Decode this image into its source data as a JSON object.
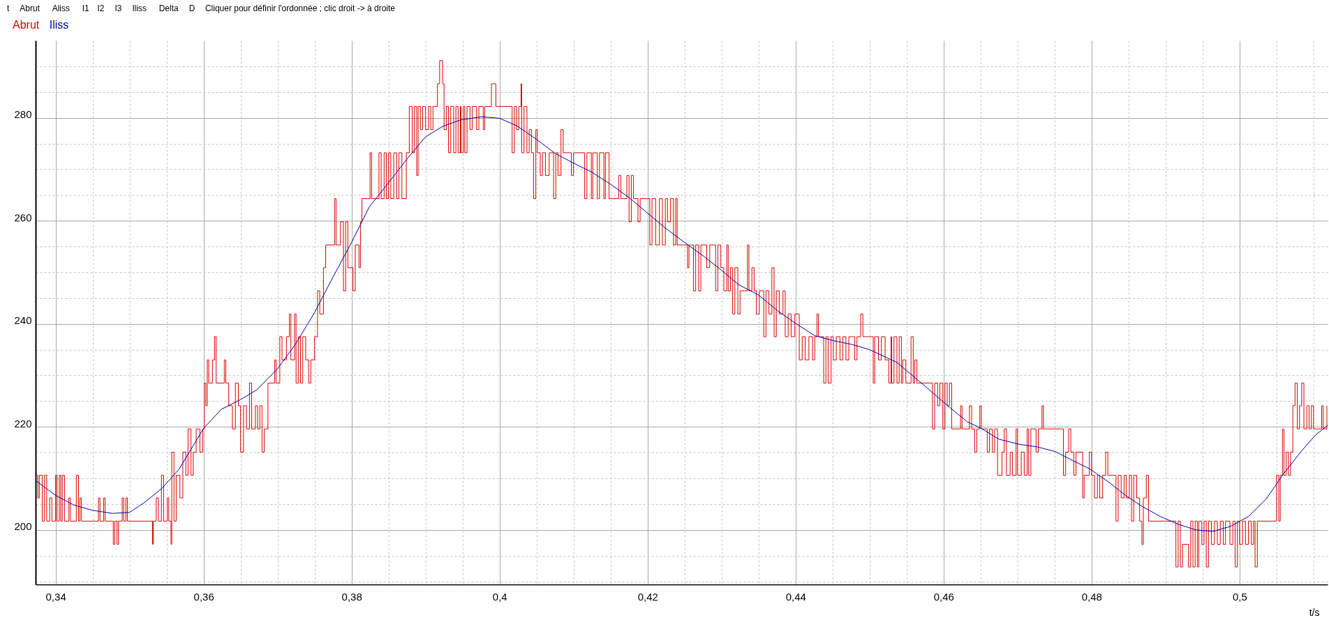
{
  "chart_data": {
    "type": "line",
    "xlabel": "t/s",
    "annotations": [
      "t",
      "Abrut",
      "Aliss",
      "I1",
      "I2",
      "I3",
      "Iliss",
      "Delta",
      "D",
      "Cliquer pour définir l'ordonnée ; clic droit -> à droite"
    ],
    "xlim": [
      0.3373,
      0.5119
    ],
    "ylim": [
      189.4,
      295
    ],
    "xticks": [
      {
        "value": 0.34,
        "label": "0,34"
      },
      {
        "value": 0.345,
        "label": null
      },
      {
        "value": 0.35,
        "label": null
      },
      {
        "value": 0.355,
        "label": null
      },
      {
        "value": 0.36,
        "label": "0,36"
      },
      {
        "value": 0.365,
        "label": null
      },
      {
        "value": 0.37,
        "label": null
      },
      {
        "value": 0.375,
        "label": null
      },
      {
        "value": 0.38,
        "label": "0,38"
      },
      {
        "value": 0.385,
        "label": null
      },
      {
        "value": 0.39,
        "label": null
      },
      {
        "value": 0.395,
        "label": null
      },
      {
        "value": 0.4,
        "label": "0,4"
      },
      {
        "value": 0.405,
        "label": null
      },
      {
        "value": 0.41,
        "label": null
      },
      {
        "value": 0.415,
        "label": null
      },
      {
        "value": 0.42,
        "label": "0,42"
      },
      {
        "value": 0.425,
        "label": null
      },
      {
        "value": 0.43,
        "label": null
      },
      {
        "value": 0.435,
        "label": null
      },
      {
        "value": 0.44,
        "label": "0,44"
      },
      {
        "value": 0.445,
        "label": null
      },
      {
        "value": 0.45,
        "label": null
      },
      {
        "value": 0.455,
        "label": null
      },
      {
        "value": 0.46,
        "label": "0,46"
      },
      {
        "value": 0.465,
        "label": null
      },
      {
        "value": 0.47,
        "label": null
      },
      {
        "value": 0.475,
        "label": null
      },
      {
        "value": 0.48,
        "label": "0,48"
      },
      {
        "value": 0.485,
        "label": null
      },
      {
        "value": 0.49,
        "label": null
      },
      {
        "value": 0.495,
        "label": null
      },
      {
        "value": 0.5,
        "label": "0,5"
      },
      {
        "value": 0.505,
        "label": null
      },
      {
        "value": 0.51,
        "label": null
      }
    ],
    "yticks": [
      {
        "value": 190,
        "label": null
      },
      {
        "value": 195,
        "label": null
      },
      200,
      {
        "value": 205,
        "label": null
      },
      {
        "value": 210,
        "label": null
      },
      {
        "value": 215,
        "label": null
      },
      220,
      {
        "value": 225,
        "label": null
      },
      {
        "value": 230,
        "label": null
      },
      {
        "value": 235,
        "label": null
      },
      240,
      {
        "value": 245,
        "label": null
      },
      {
        "value": 250,
        "label": null
      },
      {
        "value": 255,
        "label": null
      },
      260,
      {
        "value": 265,
        "label": null
      },
      {
        "value": 270,
        "label": null
      },
      {
        "value": 275,
        "label": null
      },
      280,
      {
        "value": 285,
        "label": null
      },
      {
        "value": 290,
        "label": null
      }
    ],
    "grid": true,
    "legend": "top left",
    "series": [
      {
        "name": "Abrut",
        "type": "step",
        "color": "#dd0000",
        "x": [
          0.3374,
          0.3376,
          0.3378,
          0.3382,
          0.3385,
          0.3388,
          0.3392,
          0.3395,
          0.34,
          0.3402,
          0.3405,
          0.3407,
          0.3409,
          0.3412,
          0.3418,
          0.342,
          0.3428,
          0.3431,
          0.3433,
          0.3435,
          0.3458,
          0.346,
          0.3465,
          0.3467,
          0.3478,
          0.348,
          0.3483,
          0.3485,
          0.349,
          0.3492,
          0.3495,
          0.3497,
          0.3531,
          0.3532,
          0.3536,
          0.3539,
          0.3543,
          0.3546,
          0.3551,
          0.3553,
          0.3556,
          0.3557,
          0.356,
          0.3563,
          0.3568,
          0.3572,
          0.3576,
          0.3579,
          0.3583,
          0.3586,
          0.359,
          0.3595,
          0.3599,
          0.3601,
          0.3603,
          0.3605,
          0.3607,
          0.3612,
          0.3615,
          0.3617,
          0.3628,
          0.363,
          0.3634,
          0.3639,
          0.3643,
          0.3647,
          0.365,
          0.3654,
          0.3658,
          0.3662,
          0.3665,
          0.367,
          0.3673,
          0.3676,
          0.3679,
          0.3682,
          0.3687,
          0.3696,
          0.3698,
          0.3703,
          0.3706,
          0.3712,
          0.3716,
          0.3718,
          0.3723,
          0.3725,
          0.3728,
          0.3731,
          0.3734,
          0.3738,
          0.3742,
          0.3745,
          0.375,
          0.3754,
          0.3757,
          0.3762,
          0.3765,
          0.3777,
          0.3779,
          0.3785,
          0.3789,
          0.3792,
          0.3795,
          0.3802,
          0.3805,
          0.381,
          0.3812,
          0.3814,
          0.3825,
          0.3827,
          0.3837,
          0.384,
          0.3844,
          0.3847,
          0.385,
          0.3853,
          0.3857,
          0.3861,
          0.3864,
          0.3868,
          0.3874,
          0.3878,
          0.3882,
          0.3885,
          0.3888,
          0.389,
          0.3893,
          0.3896,
          0.39,
          0.3904,
          0.3907,
          0.391,
          0.3916,
          0.3919,
          0.3923,
          0.3925,
          0.3928,
          0.3931,
          0.3934,
          0.3938,
          0.3941,
          0.3944,
          0.3947,
          0.3948,
          0.3951,
          0.3953,
          0.3956,
          0.396,
          0.3963,
          0.3969,
          0.3972,
          0.3978,
          0.398,
          0.3989,
          0.3995,
          0.4017,
          0.402,
          0.4023,
          0.4026,
          0.4029,
          0.403,
          0.4033,
          0.4037,
          0.404,
          0.4043,
          0.4046,
          0.4049,
          0.4051,
          0.4055,
          0.4058,
          0.4062,
          0.4067,
          0.4073,
          0.4076,
          0.4079,
          0.4083,
          0.4086,
          0.4097,
          0.41,
          0.4115,
          0.4118,
          0.4124,
          0.4126,
          0.4132,
          0.4135,
          0.4141,
          0.4143,
          0.4148,
          0.4161,
          0.4164,
          0.4172,
          0.4175,
          0.4178,
          0.4181,
          0.4187,
          0.419,
          0.4203,
          0.4206,
          0.4211,
          0.4216,
          0.422,
          0.4224,
          0.4227,
          0.4231,
          0.4235,
          0.4238,
          0.424,
          0.4254,
          0.4256,
          0.4262,
          0.4265,
          0.4269,
          0.4272,
          0.428,
          0.4284,
          0.4292,
          0.4295,
          0.4299,
          0.4303,
          0.4307,
          0.4309,
          0.4312,
          0.4315,
          0.4318,
          0.4322,
          0.4325,
          0.4335,
          0.4337,
          0.4341,
          0.4344,
          0.4347,
          0.4351,
          0.4357,
          0.436,
          0.4364,
          0.4368,
          0.4371,
          0.4374,
          0.4378,
          0.4383,
          0.4386,
          0.439,
          0.4394,
          0.4399,
          0.4405,
          0.4409,
          0.4413,
          0.4418,
          0.4423,
          0.4426,
          0.4429,
          0.4431,
          0.4438,
          0.4441,
          0.4444,
          0.4448,
          0.4451,
          0.4455,
          0.446,
          0.4464,
          0.4468,
          0.4472,
          0.448,
          0.4483,
          0.4488,
          0.4491,
          0.4505,
          0.4507,
          0.4512,
          0.4516,
          0.4521,
          0.4526,
          0.4529,
          0.453,
          0.4533,
          0.4537,
          0.454,
          0.4543,
          0.4545,
          0.4549,
          0.4556,
          0.4559,
          0.4561,
          0.4564,
          0.4585,
          0.4588,
          0.4592,
          0.4595,
          0.4599,
          0.4602,
          0.4605,
          0.4608,
          0.4611,
          0.4623,
          0.4625,
          0.4635,
          0.4638,
          0.4642,
          0.4645,
          0.4649,
          0.4651,
          0.4659,
          0.4662,
          0.4666,
          0.4669,
          0.4673,
          0.4679,
          0.4682,
          0.4685,
          0.469,
          0.4693,
          0.4698,
          0.47,
          0.4705,
          0.4709,
          0.4713,
          0.4715,
          0.4718,
          0.4725,
          0.4728,
          0.4733,
          0.4735,
          0.4762,
          0.4765,
          0.4769,
          0.4772,
          0.4776,
          0.4779,
          0.4788,
          0.479,
          0.4797,
          0.48,
          0.4804,
          0.4808,
          0.4811,
          0.4815,
          0.4819,
          0.4822,
          0.4833,
          0.4836,
          0.484,
          0.4844,
          0.4847,
          0.4851,
          0.4854,
          0.4857,
          0.4861,
          0.4865,
          0.4868,
          0.487,
          0.4874,
          0.4877,
          0.4914,
          0.4917,
          0.492,
          0.4923,
          0.4931,
          0.4934,
          0.4937,
          0.494,
          0.4943,
          0.4945,
          0.4949,
          0.4952,
          0.4955,
          0.4958,
          0.4962,
          0.4966,
          0.497,
          0.4974,
          0.4978,
          0.4981,
          0.4987,
          0.4991,
          0.4994,
          0.4997,
          0.5,
          0.5004,
          0.5008,
          0.5012,
          0.5016,
          0.5019,
          0.5021,
          0.5024,
          0.505,
          0.5053,
          0.5055,
          0.5058,
          0.506,
          0.5063,
          0.5066,
          0.5069,
          0.5072,
          0.5075,
          0.5078,
          0.5081,
          0.5084,
          0.5087,
          0.5091,
          0.5094,
          0.5097,
          0.51,
          0.5111,
          0.5113,
          0.5118
        ],
        "values": [
          210.6,
          206.2,
          210.6,
          201.7,
          210.6,
          201.7,
          206.2,
          201.7,
          210.6,
          201.7,
          210.6,
          201.7,
          210.6,
          201.7,
          206.2,
          201.7,
          210.6,
          201.7,
          206.2,
          201.7,
          206.2,
          201.7,
          206.2,
          201.7,
          197.2,
          201.7,
          197.2,
          201.7,
          206.2,
          201.7,
          206.2,
          201.7,
          197.2,
          201.7,
          206.2,
          201.7,
          210.6,
          201.7,
          206.2,
          201.7,
          197.2,
          215.1,
          201.7,
          210.6,
          206.2,
          215.1,
          210.6,
          219.6,
          210.6,
          215.1,
          219.6,
          215.1,
          219.6,
          228.5,
          224.1,
          233.0,
          228.5,
          233.0,
          237.5,
          228.5,
          233.0,
          228.5,
          224.1,
          219.6,
          228.5,
          224.1,
          215.1,
          224.1,
          219.6,
          228.5,
          219.6,
          224.1,
          219.6,
          224.1,
          215.1,
          219.6,
          228.5,
          233.0,
          228.5,
          237.5,
          233.0,
          237.5,
          241.9,
          233.0,
          241.9,
          228.5,
          237.5,
          228.5,
          237.5,
          233.0,
          228.5,
          233.0,
          237.5,
          246.4,
          241.9,
          250.9,
          255.3,
          264.3,
          255.3,
          259.8,
          246.4,
          259.8,
          250.9,
          246.4,
          255.3,
          250.9,
          259.8,
          264.3,
          273.2,
          264.3,
          273.2,
          264.3,
          273.2,
          264.3,
          273.2,
          264.3,
          273.2,
          264.3,
          273.2,
          264.3,
          273.2,
          282.2,
          273.2,
          282.2,
          268.8,
          282.2,
          277.7,
          282.2,
          277.7,
          282.2,
          277.7,
          282.2,
          286.6,
          291.1,
          286.6,
          277.7,
          282.2,
          273.2,
          282.2,
          273.2,
          282.2,
          273.2,
          282.2,
          273.2,
          282.2,
          273.2,
          282.2,
          277.7,
          282.2,
          277.7,
          282.2,
          277.7,
          282.2,
          286.6,
          282.2,
          273.2,
          282.2,
          277.7,
          282.2,
          286.6,
          273.2,
          282.2,
          273.2,
          277.7,
          273.2,
          264.3,
          277.7,
          273.2,
          268.8,
          273.2,
          268.8,
          273.2,
          264.3,
          273.2,
          268.8,
          277.7,
          273.2,
          268.8,
          273.2,
          264.3,
          273.2,
          264.3,
          273.2,
          264.3,
          273.2,
          264.3,
          273.2,
          264.3,
          268.8,
          264.3,
          268.8,
          259.8,
          268.8,
          264.3,
          259.8,
          264.3,
          255.3,
          264.3,
          255.3,
          264.3,
          255.3,
          264.3,
          259.8,
          264.3,
          255.3,
          264.3,
          255.3,
          250.9,
          255.3,
          246.4,
          255.3,
          246.4,
          255.3,
          250.9,
          255.3,
          246.4,
          255.3,
          250.9,
          246.4,
          255.3,
          246.4,
          250.9,
          241.9,
          250.9,
          241.9,
          246.4,
          255.3,
          246.4,
          250.9,
          246.4,
          241.9,
          246.4,
          237.5,
          246.4,
          241.9,
          250.9,
          237.5,
          246.4,
          241.9,
          246.4,
          237.5,
          241.9,
          237.5,
          241.9,
          233.0,
          237.5,
          233.0,
          237.5,
          233.0,
          237.5,
          241.9,
          237.5,
          228.5,
          237.5,
          228.5,
          237.5,
          233.0,
          237.5,
          233.0,
          237.5,
          233.0,
          237.5,
          233.0,
          237.5,
          241.9,
          237.5,
          228.5,
          237.5,
          233.0,
          237.5,
          233.0,
          228.5,
          237.5,
          228.5,
          237.5,
          228.5,
          237.5,
          228.5,
          233.0,
          228.5,
          237.5,
          228.5,
          233.0,
          228.5,
          219.6,
          228.5,
          224.1,
          228.5,
          219.6,
          228.5,
          224.1,
          228.5,
          219.6,
          224.1,
          219.6,
          224.1,
          219.6,
          215.1,
          219.6,
          224.1,
          219.6,
          215.1,
          219.6,
          215.1,
          219.6,
          210.6,
          215.1,
          219.6,
          210.6,
          215.1,
          210.6,
          219.6,
          210.6,
          215.1,
          210.6,
          219.6,
          210.6,
          219.6,
          215.1,
          219.6,
          224.1,
          219.6,
          210.6,
          215.1,
          219.6,
          215.1,
          210.6,
          215.1,
          206.2,
          210.6,
          215.1,
          210.6,
          206.2,
          210.6,
          206.2,
          210.6,
          215.1,
          210.6,
          201.7,
          210.6,
          206.2,
          210.6,
          206.2,
          210.6,
          201.7,
          210.6,
          206.2,
          201.7,
          197.2,
          206.2,
          210.6,
          201.7,
          192.8,
          201.7,
          192.8,
          197.2,
          192.8,
          201.7,
          192.8,
          201.7,
          192.8,
          201.7,
          197.2,
          201.7,
          192.8,
          201.7,
          197.2,
          201.7,
          197.2,
          201.7,
          197.2,
          201.7,
          197.2,
          201.7,
          192.8,
          201.7,
          197.2,
          201.7,
          197.2,
          201.7,
          197.2,
          201.7,
          192.8,
          201.7,
          210.6,
          201.7,
          210.6,
          219.6,
          210.6,
          215.1,
          210.6,
          215.1,
          224.1,
          228.5,
          219.6,
          224.1,
          228.5,
          219.6,
          224.1,
          219.6,
          224.1,
          219.6,
          224.1,
          219.6,
          224.1
        ]
      },
      {
        "name": "Iliss",
        "type": "line",
        "color": "#0000aa",
        "x": [
          0.3373,
          0.34,
          0.3425,
          0.345,
          0.3477,
          0.35,
          0.352,
          0.3544,
          0.3567,
          0.36,
          0.3624,
          0.365,
          0.3672,
          0.37,
          0.3724,
          0.375,
          0.3772,
          0.38,
          0.3824,
          0.385,
          0.3876,
          0.39,
          0.3924,
          0.3948,
          0.3976,
          0.4,
          0.4024,
          0.405,
          0.4076,
          0.41,
          0.4124,
          0.415,
          0.4176,
          0.42,
          0.4224,
          0.425,
          0.4276,
          0.43,
          0.4323,
          0.435,
          0.4376,
          0.44,
          0.4426,
          0.4452,
          0.4476,
          0.45,
          0.4537,
          0.4561,
          0.4584,
          0.4608,
          0.4632,
          0.4651,
          0.4675,
          0.4703,
          0.4727,
          0.4751,
          0.4774,
          0.4798,
          0.4822,
          0.4846,
          0.4869,
          0.4893,
          0.4917,
          0.4941,
          0.4964,
          0.4988,
          0.5012,
          0.5036,
          0.5059,
          0.5083,
          0.5102,
          0.5119
        ],
        "values": [
          209.6,
          206.7,
          204.8,
          203.8,
          203.2,
          203.4,
          205.3,
          208.1,
          211.8,
          219.7,
          223.4,
          225.3,
          227.2,
          231.3,
          236.0,
          242.2,
          248.3,
          255.8,
          262.7,
          267.4,
          272.2,
          276.3,
          278.4,
          279.6,
          280.2,
          279.9,
          278.4,
          275.8,
          273.0,
          271.2,
          269.5,
          267.1,
          264.4,
          261.5,
          258.6,
          255.8,
          253.1,
          250.4,
          247.6,
          245.6,
          242.5,
          240.1,
          237.7,
          236.7,
          236.0,
          235.0,
          232.5,
          229.6,
          226.8,
          223.8,
          221.0,
          219.7,
          217.6,
          216.6,
          216.1,
          215.2,
          213.5,
          211.8,
          209.4,
          206.7,
          204.5,
          202.6,
          201.1,
          200.0,
          199.7,
          200.7,
          202.6,
          206.0,
          210.8,
          215.2,
          218.3,
          220.3
        ]
      }
    ]
  }
}
